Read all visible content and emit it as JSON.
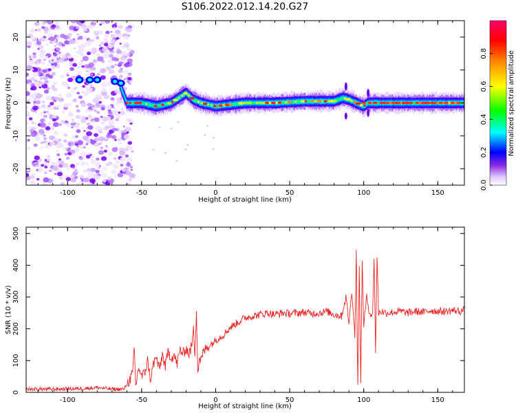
{
  "figure": {
    "title": "S106.2022.012.14.20.G27",
    "colors": {
      "snr_line": "#ee2222",
      "spectrogram_colormap": [
        "#ffffff",
        "#e8d8ff",
        "#b070ff",
        "#7700ff",
        "#0000ff",
        "#00ffff",
        "#00ff00",
        "#ffff00",
        "#ff8800",
        "#ff0000",
        "#ff0066"
      ]
    }
  },
  "chart_data": [
    {
      "type": "heatmap",
      "title": "",
      "xlabel": "Height of straight line (km)",
      "ylabel": "Frequency (Hz)",
      "xlim": [
        -128,
        168
      ],
      "ylim": [
        -25,
        25
      ],
      "xticks": [
        -100,
        -50,
        0,
        50,
        100,
        150
      ],
      "yticks": [
        -20,
        -10,
        0,
        10,
        20
      ],
      "grid": false,
      "colorbar": {
        "label": "Normalized spectral amplitude",
        "range": [
          0.0,
          1.0
        ],
        "ticks": [
          0.0,
          0.2,
          0.4,
          0.6,
          0.8
        ]
      },
      "noise_region_x": [
        -128,
        -62
      ],
      "ridge": {
        "description_points_x": [
          -65,
          -60,
          -50,
          -40,
          -30,
          -20,
          -15,
          -10,
          0,
          20,
          40,
          60,
          80,
          86,
          90,
          95,
          100,
          103,
          110,
          168
        ],
        "description_points_y": [
          6,
          0,
          0,
          -1,
          0,
          3,
          1,
          0,
          -1,
          0,
          0,
          0.5,
          0.5,
          1.5,
          1,
          0,
          -1,
          0,
          0,
          0
        ]
      }
    },
    {
      "type": "line",
      "title": "",
      "xlabel": "Height of straight line (km)",
      "ylabel": "SNR (10 * v/v)",
      "xlim": [
        -128,
        168
      ],
      "ylim": [
        0,
        520
      ],
      "xticks": [
        -100,
        -50,
        0,
        50,
        100,
        150
      ],
      "yticks": [
        0,
        100,
        200,
        300,
        400,
        500
      ],
      "grid": false,
      "series": [
        {
          "x": [
            -128,
            -110,
            -90,
            -80,
            -70,
            -62,
            -58,
            -56,
            -55,
            -54,
            -52,
            -50,
            -48,
            -46,
            -44,
            -42,
            -40,
            -38,
            -36,
            -34,
            -32,
            -30,
            -28,
            -26,
            -24,
            -22,
            -20,
            -18,
            -16,
            -15,
            -14,
            -13,
            -12,
            -11,
            -10,
            -8,
            -6,
            -4,
            -2,
            0,
            5,
            10,
            15,
            20,
            25,
            30,
            35,
            40,
            45,
            50,
            55,
            60,
            65,
            70,
            75,
            80,
            85,
            88,
            90,
            92,
            94,
            95,
            96,
            97,
            98,
            99,
            100,
            102,
            104,
            106,
            107,
            108,
            109,
            110,
            112,
            115,
            120,
            125,
            130,
            135,
            140,
            145,
            150,
            155,
            160,
            165,
            168
          ],
          "y": [
            10,
            10,
            12,
            15,
            10,
            10,
            40,
            60,
            140,
            20,
            80,
            50,
            60,
            100,
            40,
            90,
            110,
            70,
            120,
            80,
            130,
            110,
            115,
            90,
            135,
            120,
            140,
            120,
            150,
            200,
            120,
            260,
            60,
            110,
            100,
            130,
            140,
            150,
            155,
            165,
            180,
            205,
            220,
            235,
            240,
            245,
            250,
            245,
            250,
            248,
            250,
            252,
            248,
            250,
            255,
            245,
            240,
            300,
            220,
            320,
            180,
            440,
            20,
            390,
            40,
            420,
            210,
            300,
            250,
            240,
            430,
            130,
            430,
            250,
            255,
            250,
            252,
            255,
            250,
            255,
            252,
            258,
            255,
            255,
            258,
            255,
            260
          ]
        }
      ]
    }
  ]
}
